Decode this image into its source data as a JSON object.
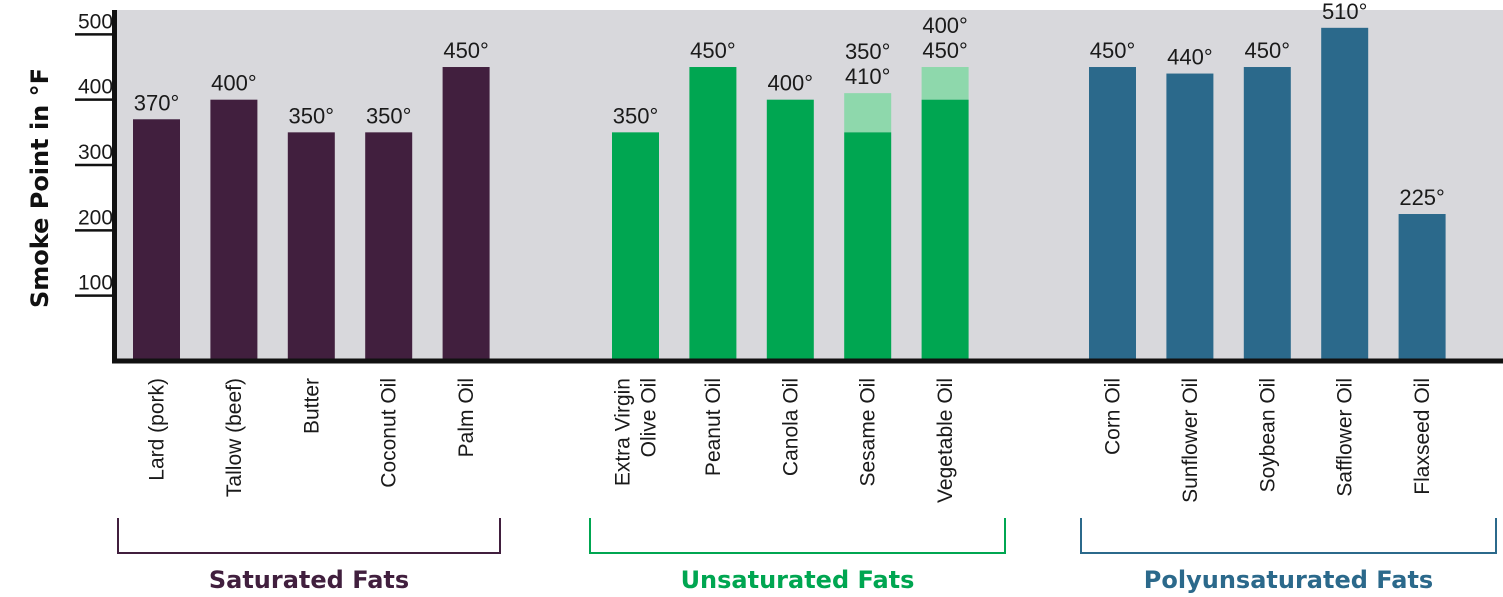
{
  "chart_data": {
    "type": "bar",
    "ylabel": "Smoke Point in °F",
    "xlabel": "",
    "ylim": [
      0,
      550
    ],
    "yticks": [
      100,
      200,
      300,
      400,
      500
    ],
    "grid": false,
    "categories": [
      "Lard (pork)",
      "Tallow (beef)",
      "Butter",
      "Coconut Oil",
      "Palm Oil",
      "Extra Virgin Olive Oil",
      "Peanut Oil",
      "Canola Oil",
      "Sesame Oil",
      "Vegetable Oil",
      "Corn Oil",
      "Sunflower Oil",
      "Soybean Oil",
      "Safflower Oil",
      "Flaxseed Oil"
    ],
    "groups": [
      {
        "name": "Saturated Fats",
        "color": "#411f3e",
        "items": [
          {
            "label": "Lard (pork)",
            "value": 370,
            "value_label": "370°"
          },
          {
            "label": "Tallow (beef)",
            "value": 400,
            "value_label": "400°"
          },
          {
            "label": "Butter",
            "value": 350,
            "value_label": "350°"
          },
          {
            "label": "Coconut Oil",
            "value": 350,
            "value_label": "350°"
          },
          {
            "label": "Palm Oil",
            "value": 450,
            "value_label": "450°"
          }
        ]
      },
      {
        "name": "Unsaturated Fats",
        "color": "#00a651",
        "light_color": "#8ed8ac",
        "items": [
          {
            "label": "Extra Virgin\nOlive Oil",
            "value": 350,
            "value_label": "350°"
          },
          {
            "label": "Peanut Oil",
            "value": 450,
            "value_label": "450°"
          },
          {
            "label": "Canola Oil",
            "value": 400,
            "value_label": "400°"
          },
          {
            "label": "Sesame Oil",
            "value": 350,
            "high": 410,
            "value_label": "350°\n410°"
          },
          {
            "label": "Vegetable Oil",
            "value": 400,
            "high": 450,
            "value_label": "400°\n450°"
          }
        ]
      },
      {
        "name": "Polyunsaturated Fats",
        "color": "#2b698b",
        "items": [
          {
            "label": "Corn Oil",
            "value": 450,
            "value_label": "450°"
          },
          {
            "label": "Sunflower Oil",
            "value": 440,
            "value_label": "440°"
          },
          {
            "label": "Soybean Oil",
            "value": 450,
            "value_label": "450°"
          },
          {
            "label": "Safflower Oil",
            "value": 510,
            "value_label": "510°"
          },
          {
            "label": "Flaxseed Oil",
            "value": 225,
            "value_label": "225°"
          }
        ]
      }
    ]
  }
}
